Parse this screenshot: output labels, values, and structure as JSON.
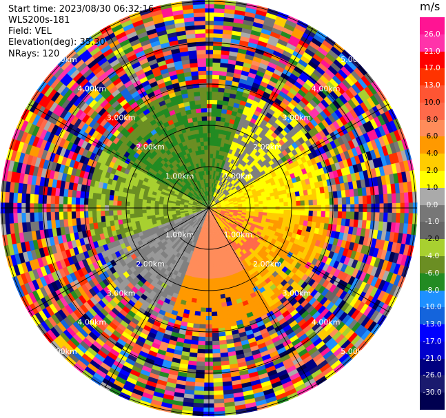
{
  "header": {
    "start_time": "Start time: 2023/08/30 06:32:16",
    "instrument": "WLS200s-181",
    "field": "Field: VEL",
    "elevation": "Elevation(deg): 35.30",
    "nrays": "NRays: 120"
  },
  "chart_data": {
    "type": "heatmap",
    "subtype": "polar-ppi",
    "field": "VEL",
    "units": "m/s",
    "nrays": 120,
    "range_rings_km": [
      1.0,
      2.0,
      3.0,
      4.0,
      5.0
    ],
    "ring_labels": [
      "1.00km",
      "2.00km",
      "3.00km",
      "4.00km",
      "5.00km"
    ],
    "grid": true,
    "colorbar": {
      "unit_label": "m/s",
      "ticks": [
        "26.0",
        "21.0",
        "17.0",
        "13.0",
        "10.0",
        "8.0",
        "6.0",
        "4.0",
        "2.0",
        "1.0",
        "0.0",
        "-1.0",
        "-2.0",
        "-4.0",
        "-6.0",
        "-8.0",
        "-10.0",
        "-13.0",
        "-17.0",
        "-21.0",
        "-26.0",
        "-30.0"
      ],
      "colors": [
        "#ff1493",
        "#ff33aa",
        "#ff0000",
        "#ff3300",
        "#ff5533",
        "#ff6a4a",
        "#ff8c5a",
        "#ff9900",
        "#ffcc00",
        "#ffff00",
        "#aaaaaa",
        "#777777",
        "#666666",
        "#a8d030",
        "#6b8e23",
        "#228b22",
        "#1e90ff",
        "#1464dc",
        "#0000ff",
        "#0000cd",
        "#000080",
        "#1a1a6e",
        "#000050"
      ]
    }
  }
}
